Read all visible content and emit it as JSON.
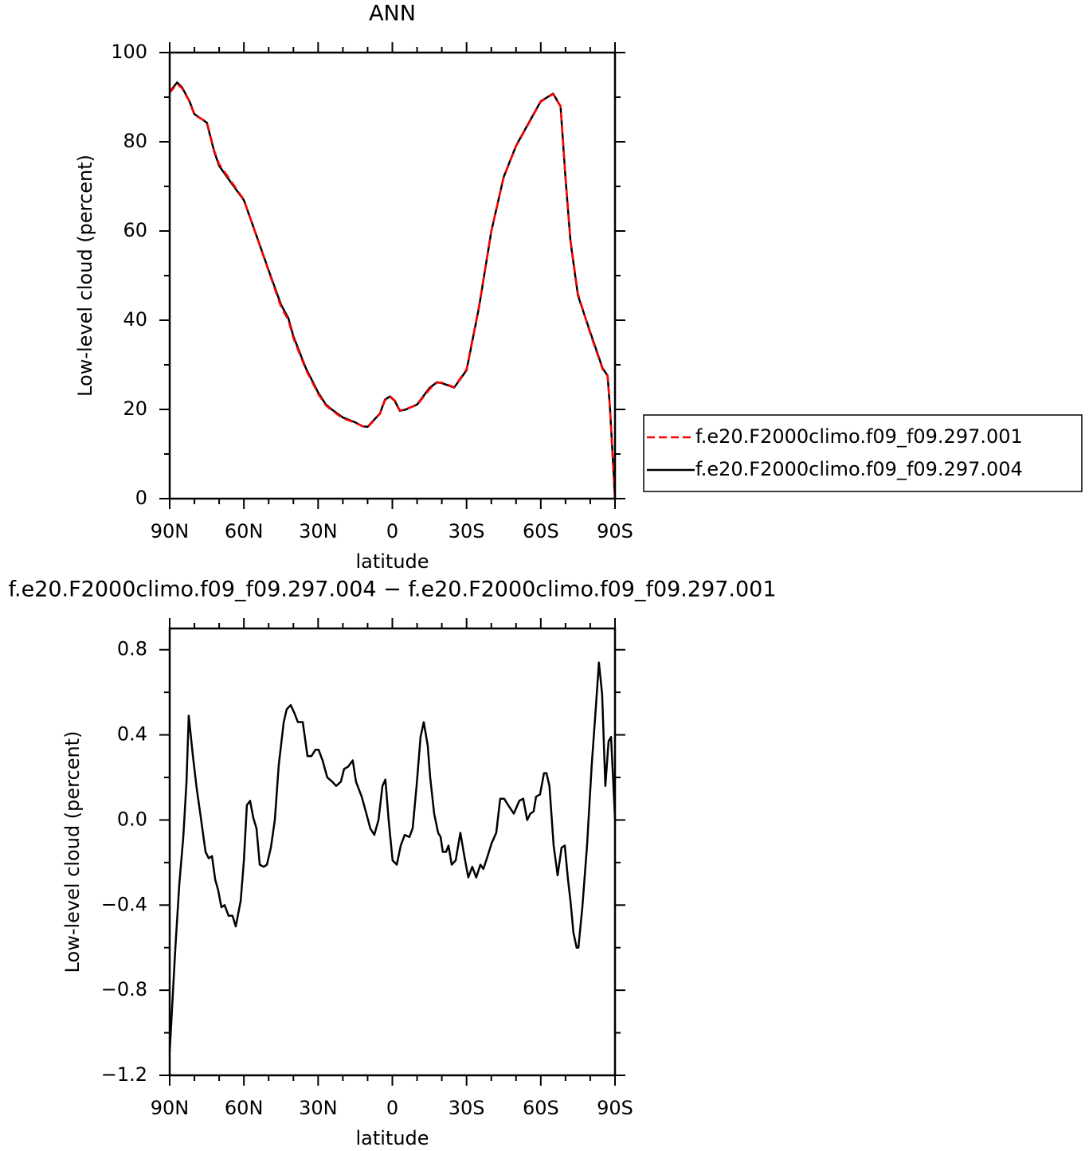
{
  "chart_data": [
    {
      "type": "line",
      "title": "ANN",
      "x_label": "latitude",
      "y_label": "Low-level cloud (percent)",
      "xlim": [
        90,
        -90
      ],
      "xticks": [
        {
          "value": 90,
          "label": "90N"
        },
        {
          "value": 60,
          "label": "60N"
        },
        {
          "value": 30,
          "label": "30N"
        },
        0,
        {
          "value": -30,
          "label": "30S"
        },
        {
          "value": -60,
          "label": "60S"
        },
        {
          "value": -90,
          "label": "90S"
        }
      ],
      "xminorticks": [
        80,
        70,
        50,
        40,
        20,
        10,
        -10,
        -20,
        -40,
        -50,
        -70,
        -80
      ],
      "ylim": [
        0,
        100
      ],
      "yticks": [
        0,
        20,
        40,
        60,
        80,
        100
      ],
      "yminorticks": [
        10,
        30,
        50,
        70,
        90
      ],
      "legend": "right",
      "x": [
        90,
        87,
        85,
        82,
        80,
        75,
        72,
        70,
        65,
        60,
        55,
        50,
        45,
        42,
        40,
        35,
        30,
        27,
        25,
        20,
        15,
        12,
        10,
        5,
        3,
        1,
        -1,
        -3,
        -5,
        -10,
        -15,
        -18,
        -20,
        -25,
        -30,
        -35,
        -40,
        -45,
        -50,
        -55,
        -60,
        -65,
        -68,
        -70,
        -72,
        -75,
        -80,
        -85,
        -87,
        -88,
        -90
      ],
      "series": [
        {
          "name": "f.e20.F2000climo.f09_f09.297.001",
          "color": "#ff0000",
          "line_style": "dashed",
          "values": [
            91,
            93,
            92,
            89,
            86,
            84.5,
            78,
            75,
            71,
            67,
            59,
            51,
            43,
            40,
            36,
            29,
            23.5,
            21,
            20,
            18,
            17,
            16.2,
            16,
            19,
            22,
            23,
            22,
            19.8,
            20,
            21,
            24.5,
            26,
            26,
            25,
            29,
            43,
            60,
            72,
            79,
            84,
            89,
            90.7,
            88,
            72,
            58,
            46,
            37,
            29,
            27.5,
            20,
            0
          ]
        },
        {
          "name": "f.e20.F2000climo.f09_f09.297.004",
          "color": "#000000",
          "line_style": "solid",
          "values": [
            91.2,
            93.3,
            92.2,
            89.1,
            86.2,
            84.3,
            77.8,
            74.6,
            70.7,
            66.9,
            59.1,
            51.2,
            43.5,
            40.4,
            36.4,
            29.3,
            23.8,
            21.2,
            20.2,
            18.2,
            17.1,
            16.2,
            16.1,
            19.1,
            22.2,
            22.9,
            21.9,
            19.7,
            19.9,
            21.1,
            24.8,
            26.1,
            25.9,
            24.9,
            28.8,
            42.8,
            59.9,
            72.1,
            79.1,
            84.1,
            89.1,
            90.8,
            87.9,
            71.8,
            57.7,
            45.6,
            37.3,
            29.2,
            27.6,
            20.1,
            0
          ]
        }
      ]
    },
    {
      "type": "line",
      "title": "f.e20.F2000climo.f09_f09.297.004 − f.e20.F2000climo.f09_f09.297.001",
      "x_label": "latitude",
      "y_label": "Low-level cloud (percent)",
      "xlim": [
        90,
        -90
      ],
      "xticks": [
        {
          "value": 90,
          "label": "90N"
        },
        {
          "value": 60,
          "label": "60N"
        },
        {
          "value": 30,
          "label": "30N"
        },
        0,
        {
          "value": -30,
          "label": "30S"
        },
        {
          "value": -60,
          "label": "60S"
        },
        {
          "value": -90,
          "label": "90S"
        }
      ],
      "xminorticks": [
        80,
        70,
        50,
        40,
        20,
        10,
        -10,
        -20,
        -40,
        -50,
        -70,
        -80
      ],
      "ylim": [
        -1.2,
        0.9
      ],
      "yticks": [
        {
          "value": -1.2,
          "label": "−1.2"
        },
        {
          "value": -0.8,
          "label": "−0.8"
        },
        {
          "value": -0.4,
          "label": "−0.4"
        },
        {
          "value": 0,
          "label": "0.0"
        },
        0.4,
        0.8
      ],
      "yminorticks": [
        -1,
        -0.6,
        -0.2,
        0.2,
        0.6
      ],
      "color": "#000000",
      "x": [
        90,
        87.7,
        86.1,
        84.5,
        83.2,
        82.3,
        80.7,
        79.1,
        77.4,
        75.5,
        74.2,
        72.9,
        71.6,
        70.4,
        69.1,
        67.8,
        66.2,
        64.6,
        63.3,
        61.3,
        60,
        58.8,
        57.5,
        56.2,
        54.9,
        53.6,
        52,
        50.7,
        49.1,
        47.5,
        45.9,
        43.9,
        42.7,
        41.1,
        39.5,
        38.2,
        36.2,
        34.3,
        32.7,
        31.1,
        29.8,
        28.2,
        26.3,
        24.3,
        22.7,
        20.8,
        19.5,
        17.9,
        16,
        14.7,
        12.4,
        10.5,
        8.9,
        7.3,
        5.6,
        4,
        2.8,
        1.5,
        -0.1,
        -1.8,
        -3.4,
        -5,
        -6.9,
        -8.2,
        -9.8,
        -11.4,
        -12.7,
        -14.3,
        -15.3,
        -16.9,
        -18.5,
        -19.5,
        -20.4,
        -21.7,
        -22.7,
        -24,
        -25.6,
        -27.5,
        -29.1,
        -30.7,
        -32.3,
        -33.9,
        -35.6,
        -36.8,
        -38.5,
        -40.1,
        -42,
        -43.6,
        -45.2,
        -46.8,
        -49.1,
        -51.3,
        -52.9,
        -54.5,
        -55.8,
        -57.1,
        -58.1,
        -59.7,
        -61.3,
        -62.3,
        -63.5,
        -65.2,
        -66.8,
        -68.4,
        -69.7,
        -71,
        -72,
        -73.2,
        -74.5,
        -75.2,
        -76.8,
        -78.7,
        -80.6,
        -82.2,
        -83.5,
        -84.8,
        -86.1,
        -87.4,
        -88.4,
        -90
      ],
      "values": [
        -1.09,
        -0.6,
        -0.3,
        -0.08,
        0.18,
        0.49,
        0.31,
        0.15,
        0.01,
        -0.15,
        -0.18,
        -0.17,
        -0.28,
        -0.33,
        -0.41,
        -0.4,
        -0.45,
        -0.45,
        -0.5,
        -0.38,
        -0.19,
        0.07,
        0.09,
        0.01,
        -0.04,
        -0.21,
        -0.22,
        -0.21,
        -0.13,
        0,
        0.26,
        0.46,
        0.52,
        0.54,
        0.5,
        0.46,
        0.46,
        0.3,
        0.3,
        0.33,
        0.33,
        0.28,
        0.2,
        0.18,
        0.16,
        0.18,
        0.24,
        0.25,
        0.28,
        0.18,
        0.11,
        0.03,
        -0.04,
        -0.07,
        0,
        0.16,
        0.19,
        0,
        -0.19,
        -0.21,
        -0.12,
        -0.07,
        -0.08,
        -0.04,
        0.16,
        0.39,
        0.46,
        0.35,
        0.2,
        0.03,
        -0.06,
        -0.08,
        -0.15,
        -0.15,
        -0.12,
        -0.21,
        -0.19,
        -0.06,
        -0.17,
        -0.27,
        -0.22,
        -0.27,
        -0.21,
        -0.23,
        -0.17,
        -0.11,
        -0.06,
        0.1,
        0.1,
        0.07,
        0.03,
        0.09,
        0.1,
        0,
        0.03,
        0.04,
        0.11,
        0.12,
        0.22,
        0.22,
        0.16,
        -0.12,
        -0.26,
        -0.13,
        -0.12,
        -0.28,
        -0.38,
        -0.53,
        -0.6,
        -0.6,
        -0.41,
        -0.12,
        0.26,
        0.52,
        0.74,
        0.59,
        0.16,
        0.37,
        0.39,
        0.01
      ]
    }
  ]
}
